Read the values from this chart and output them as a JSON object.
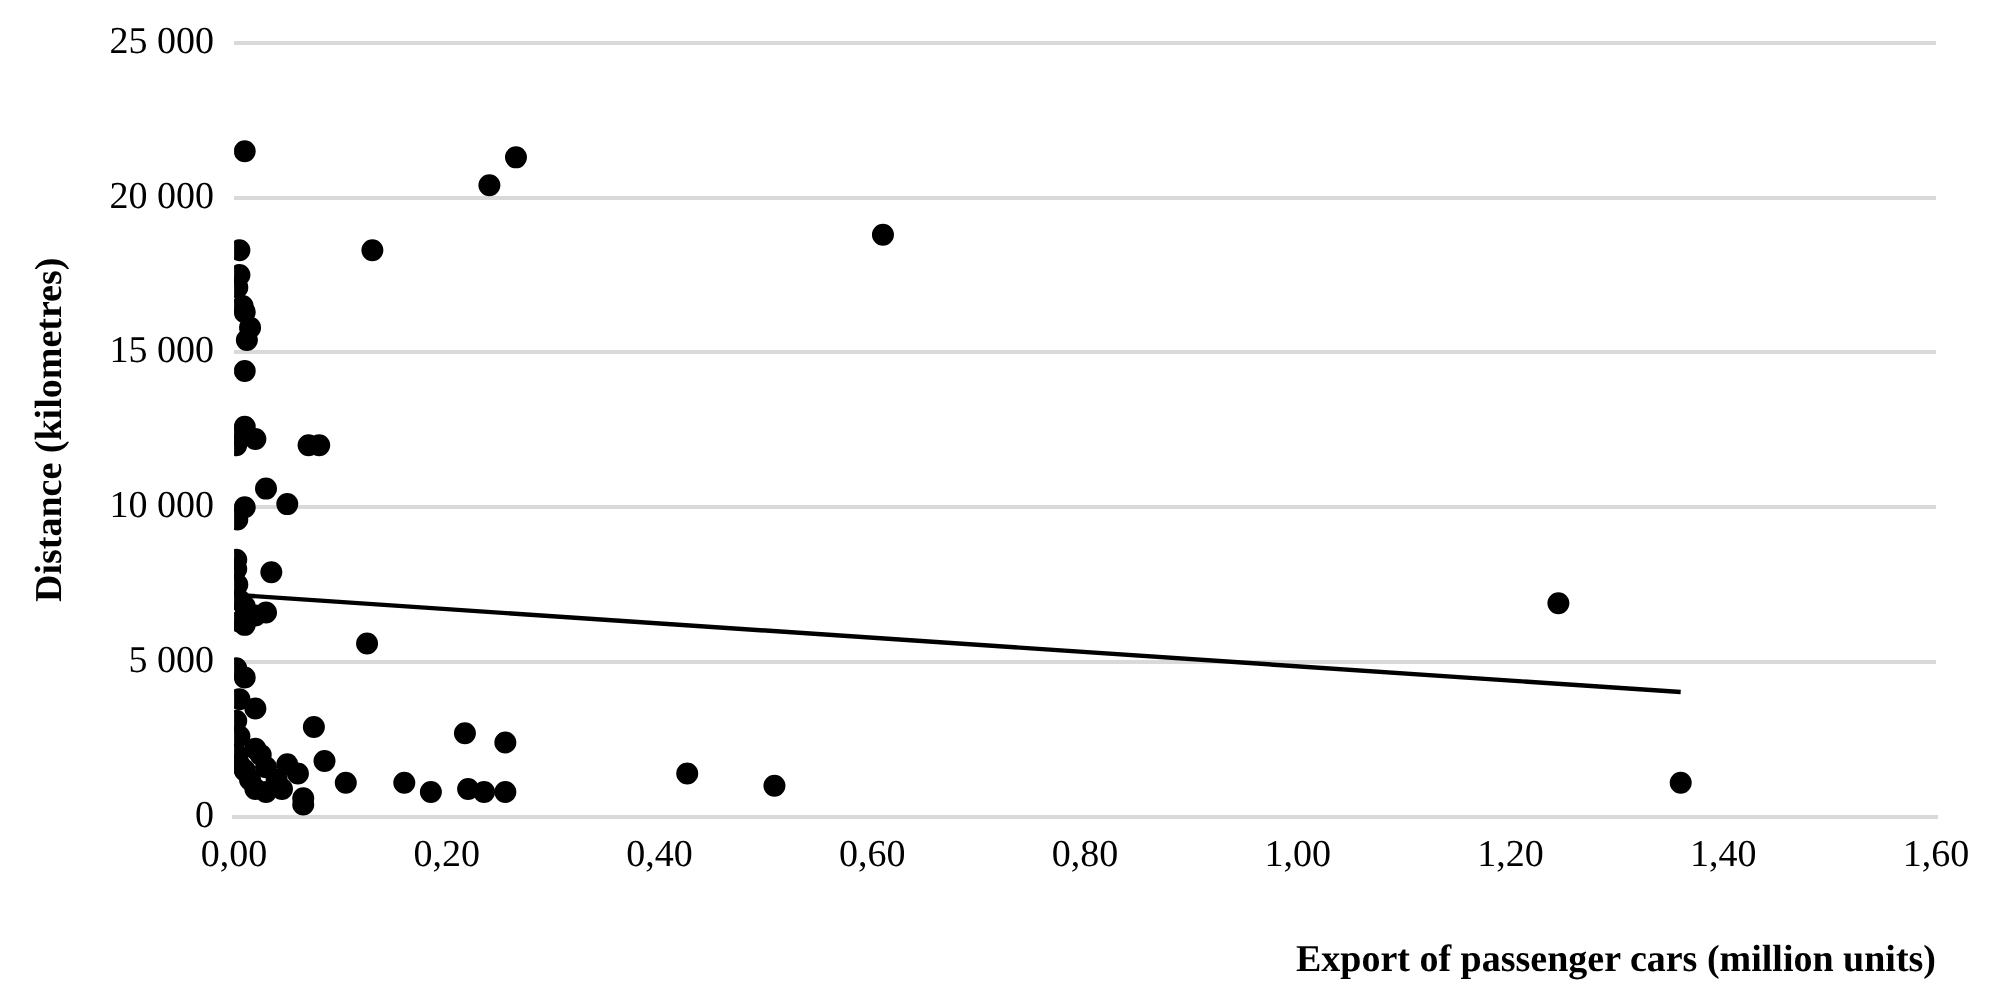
{
  "chart_data": {
    "type": "scatter",
    "xlabel": "Export of passenger cars (million units)",
    "ylabel": "Distance (kilometres)",
    "xlim": [
      0,
      1.6
    ],
    "xticks": [
      {
        "value": 0,
        "label": "0,00"
      },
      {
        "value": 0.2,
        "label": "0,20"
      },
      {
        "value": 0.4,
        "label": "0,40"
      },
      {
        "value": 0.6,
        "label": "0,60"
      },
      {
        "value": 0.8,
        "label": "0,80"
      },
      {
        "value": 1,
        "label": "1,00"
      },
      {
        "value": 1.2,
        "label": "1,20"
      },
      {
        "value": 1.4,
        "label": "1,40"
      },
      {
        "value": 1.6,
        "label": "1,60"
      }
    ],
    "ylim": [
      0,
      25000
    ],
    "yticks": [
      0,
      {
        "value": 5000,
        "label": "5 000"
      },
      {
        "value": 10000,
        "label": "10 000"
      },
      {
        "value": 15000,
        "label": "15 000"
      },
      {
        "value": 20000,
        "label": "20 000"
      },
      {
        "value": 25000,
        "label": "25 000"
      }
    ],
    "grid": "y",
    "legend": false,
    "marker": "circle",
    "series": [
      {
        "type": "scatter",
        "color": "#000000",
        "x": [
          0.01,
          0.24,
          0.265,
          0.61,
          0.13,
          0.005,
          0.005,
          0.003,
          0.008,
          0.01,
          0.015,
          0.012,
          0.01,
          0.01,
          0.005,
          0.002,
          0.02,
          0.07,
          0.08,
          0.03,
          0.05,
          0.01,
          0.003,
          0.002,
          0.002,
          0.035,
          0.003,
          0.005,
          0.01,
          0.02,
          0.03,
          0.005,
          0.01,
          0.125,
          0.002,
          0.01,
          0.005,
          0.02,
          0.002,
          0.005,
          0.02,
          0.075,
          0.085,
          0.003,
          0.005,
          0.01,
          0.015,
          0.02,
          0.03,
          0.05,
          0.06,
          0.065,
          0.065,
          0.105,
          0.16,
          0.185,
          0.217,
          0.22,
          0.235,
          0.255,
          0.255,
          0.426,
          0.508,
          1.245,
          1.36,
          0.04,
          0.03,
          0.025,
          0.045
        ],
        "values": [
          21500,
          20400,
          21300,
          18800,
          18300,
          18300,
          17500,
          17100,
          16500,
          16300,
          15800,
          15400,
          14400,
          12600,
          12300,
          12000,
          12200,
          12000,
          12000,
          10600,
          10100,
          10000,
          9600,
          8300,
          8000,
          7900,
          7500,
          7000,
          6800,
          6500,
          6600,
          6300,
          6200,
          5600,
          4800,
          4500,
          3800,
          3500,
          3100,
          2600,
          2200,
          2900,
          1800,
          2000,
          1700,
          1500,
          1200,
          900,
          800,
          1700,
          1400,
          600,
          400,
          1100,
          1100,
          800,
          2700,
          900,
          800,
          2400,
          800,
          1400,
          1000,
          6900,
          1100,
          1200,
          1600,
          2000,
          900
        ]
      },
      {
        "type": "line",
        "color": "#000000",
        "marker": "none",
        "line_style": "solid",
        "x": [
          0,
          1.36
        ],
        "values": [
          7170,
          4030
        ]
      }
    ]
  }
}
